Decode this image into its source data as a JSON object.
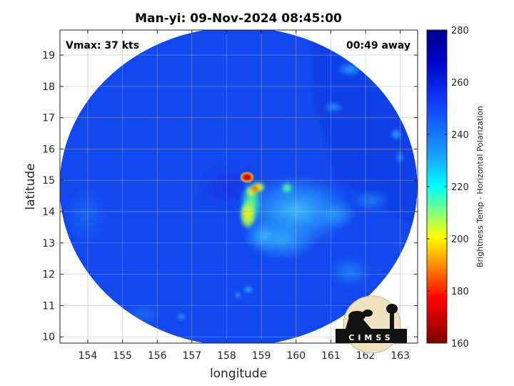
{
  "header": {
    "title": "Man-yi: 09-Nov-2024 08:45:00",
    "vmax": "Vmax: 37 kts",
    "away": "00:49 away"
  },
  "axes": {
    "xlabel": "longitude",
    "ylabel": "latitude",
    "xlim": [
      153.2,
      163.5
    ],
    "ylim": [
      9.8,
      19.8
    ],
    "xticks": [
      154,
      155,
      156,
      157,
      158,
      159,
      160,
      161,
      162,
      163
    ],
    "yticks": [
      10,
      11,
      12,
      13,
      14,
      15,
      16,
      17,
      18,
      19
    ],
    "grid": true
  },
  "colorbar": {
    "label": "Brightness Temp - Horizontal Polarization",
    "range": [
      160,
      280
    ],
    "ticks": [
      160,
      180,
      200,
      220,
      240,
      260,
      280
    ],
    "colors": [
      "#7f0000",
      "#ff0000",
      "#ffff00",
      "#00ffff",
      "#0000ff",
      "#00008f"
    ]
  },
  "logo": {
    "text": "CIMSS"
  },
  "map": {
    "type": "heatmap",
    "swath_center": [
      158.55,
      14.9
    ],
    "background_tb": 262,
    "features": [
      {
        "name": "deep-convection-core",
        "lon": 158.6,
        "lat": 15.1,
        "tb": 170
      },
      {
        "name": "convective-band",
        "lon": 158.6,
        "lat": 14.45,
        "tb": 205
      },
      {
        "name": "rain-region-east",
        "lon": 159.8,
        "lat": 14.2,
        "tb": 238
      },
      {
        "name": "rain-region-south",
        "lon": 159.3,
        "lat": 13.5,
        "tb": 244
      }
    ]
  }
}
